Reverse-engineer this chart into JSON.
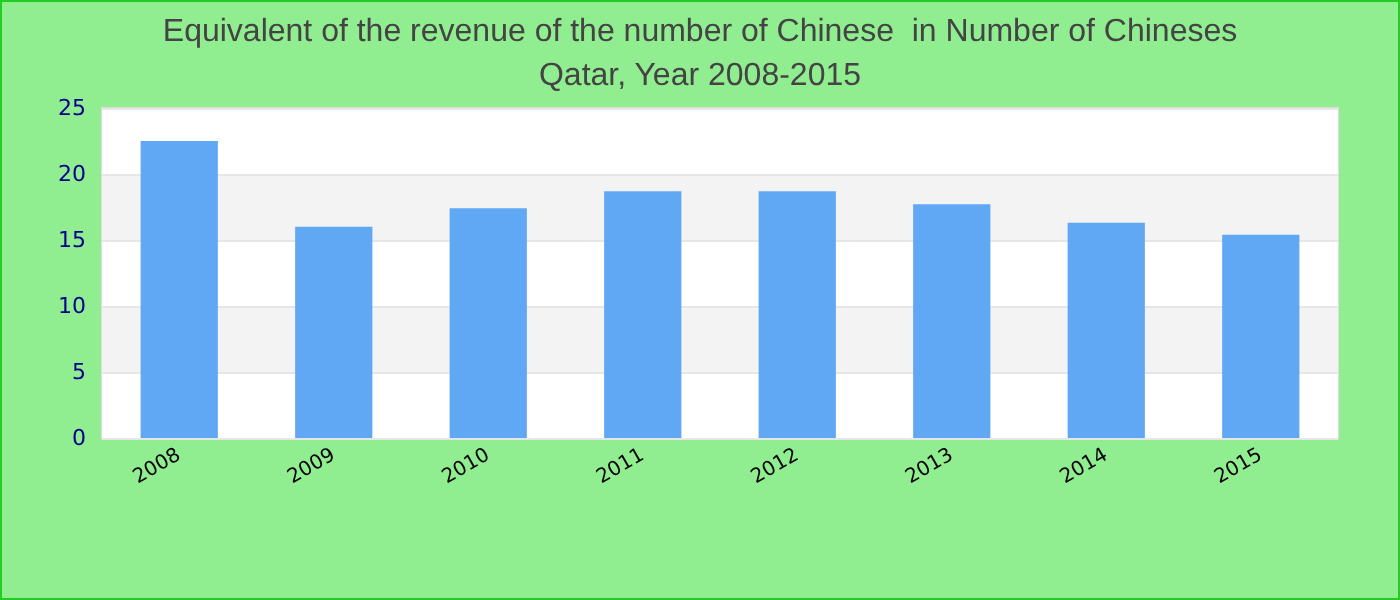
{
  "chart_data": {
    "type": "bar",
    "title": "Equivalent of the revenue of the number of Chinese  in Number of Chineses",
    "subtitle": "Qatar, Year 2008-2015",
    "categories": [
      "2008",
      "2009",
      "2010",
      "2011",
      "2012",
      "2013",
      "2014",
      "2015"
    ],
    "values": [
      22.5,
      16.0,
      17.4,
      18.7,
      18.7,
      17.7,
      16.3,
      15.4
    ],
    "color": "#60a8f4",
    "ylim": [
      0,
      25
    ],
    "yticks": [
      0,
      5,
      10,
      15,
      20,
      25
    ],
    "grid": "y"
  }
}
